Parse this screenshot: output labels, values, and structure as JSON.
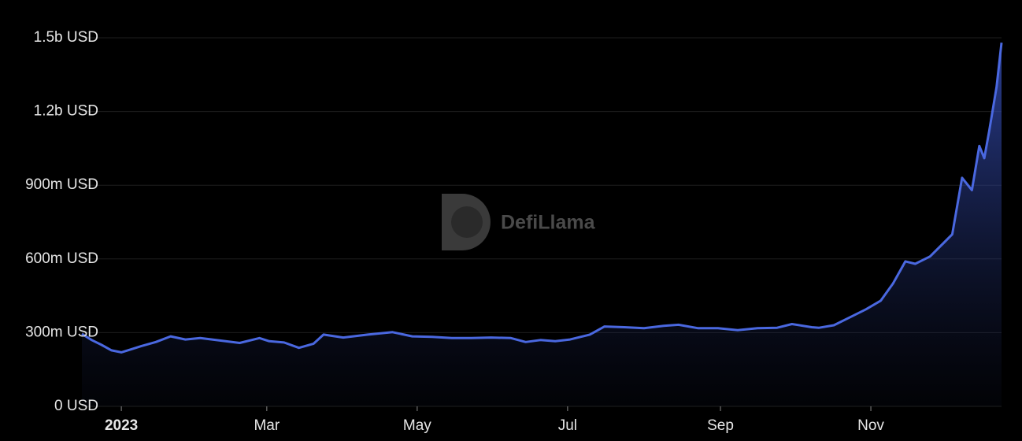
{
  "watermark": "DefiLlama",
  "chart_data": {
    "type": "area",
    "color": "#4a68e0",
    "x": [
      -16,
      -12,
      -8,
      -4,
      0,
      4,
      8,
      14,
      20,
      26,
      32,
      40,
      48,
      56,
      60,
      66,
      72,
      78,
      82,
      90,
      100,
      110,
      118,
      126,
      134,
      142,
      150,
      158,
      164,
      170,
      176,
      182,
      190,
      196,
      204,
      212,
      220,
      226,
      234,
      242,
      250,
      258,
      266,
      272,
      280,
      283,
      289,
      295,
      302,
      308,
      313,
      318,
      322,
      328,
      334,
      337,
      341,
      345,
      348,
      350,
      352,
      355,
      357
    ],
    "values": [
      295000000,
      270000000,
      250000000,
      228000000,
      220000000,
      232000000,
      245000000,
      262000000,
      285000000,
      272000000,
      278000000,
      268000000,
      258000000,
      278000000,
      265000000,
      260000000,
      238000000,
      255000000,
      292000000,
      280000000,
      292000000,
      302000000,
      285000000,
      283000000,
      278000000,
      278000000,
      280000000,
      278000000,
      262000000,
      270000000,
      265000000,
      272000000,
      292000000,
      325000000,
      322000000,
      318000000,
      328000000,
      332000000,
      318000000,
      318000000,
      310000000,
      318000000,
      320000000,
      335000000,
      322000000,
      320000000,
      330000000,
      360000000,
      395000000,
      430000000,
      500000000,
      590000000,
      580000000,
      610000000,
      670000000,
      700000000,
      930000000,
      880000000,
      1060000000,
      1010000000,
      1120000000,
      1300000000,
      1480000000
    ],
    "xlim": [
      -16,
      357
    ],
    "xticks": [
      {
        "value": 0,
        "label": "2023"
      },
      {
        "value": 59,
        "label": "Mar"
      },
      {
        "value": 120,
        "label": "May"
      },
      {
        "value": 181,
        "label": "Jul"
      },
      {
        "value": 243,
        "label": "Sep"
      },
      {
        "value": 304,
        "label": "Nov"
      }
    ],
    "ylim": [
      0,
      1500000000
    ],
    "yticks": [
      {
        "value": 0,
        "label": "0 USD"
      },
      {
        "value": 300000000,
        "label": "300m USD"
      },
      {
        "value": 600000000,
        "label": "600m USD"
      },
      {
        "value": 900000000,
        "label": "900m USD"
      },
      {
        "value": 1200000000,
        "label": "1.2b USD"
      },
      {
        "value": 1500000000,
        "label": "1.5b USD"
      }
    ],
    "grid": true
  }
}
